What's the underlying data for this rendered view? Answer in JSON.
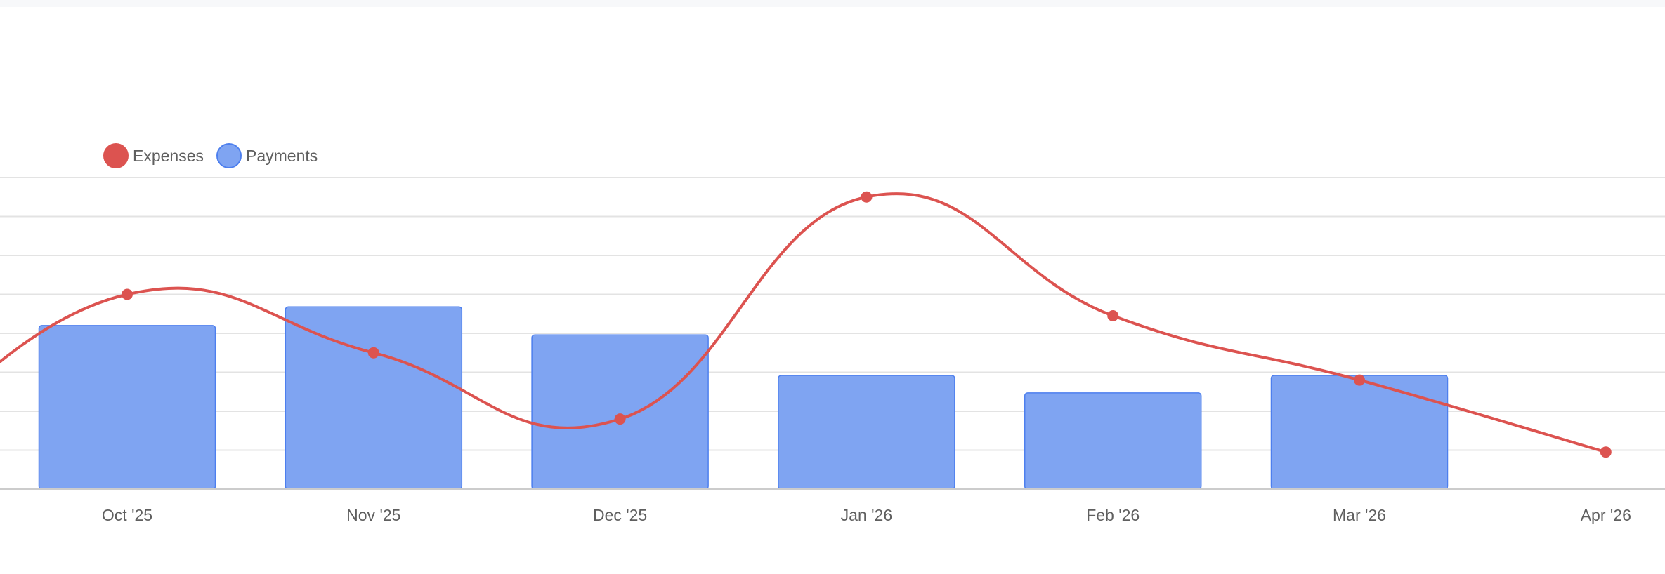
{
  "chart_data": {
    "type": "bar",
    "title": "",
    "xlabel": "",
    "ylabel": "",
    "categories": [
      "Oct '25",
      "Nov '25",
      "Dec '25",
      "Jan '26",
      "Feb '26",
      "Mar '26",
      "Apr '26"
    ],
    "series": [
      {
        "name": "Expenses",
        "type": "line",
        "smooth": true,
        "color": "#dc5350",
        "values": [
          5.0,
          3.5,
          1.8,
          7.5,
          4.45,
          2.8,
          0.95
        ]
      },
      {
        "name": "Payments",
        "type": "bar",
        "color": "#7fa4f2",
        "border": "#4d7fee",
        "values": [
          4.2,
          4.68,
          3.96,
          2.92,
          2.47,
          2.92,
          null
        ]
      }
    ],
    "ylim": [
      0,
      8
    ],
    "y_gridlines": 8,
    "grid": true,
    "y_tick_labels_visible": false,
    "legend_position": "top-left"
  },
  "legend": {
    "items": [
      {
        "label": "Expenses",
        "color": "#dc5350",
        "border": "#dc5350"
      },
      {
        "label": "Payments",
        "color": "#7fa4f2",
        "border": "#4d7fee"
      }
    ]
  },
  "colors": {
    "grid": "#e3e3e3",
    "axis": "#cccccc",
    "label": "#5f5f5f"
  }
}
